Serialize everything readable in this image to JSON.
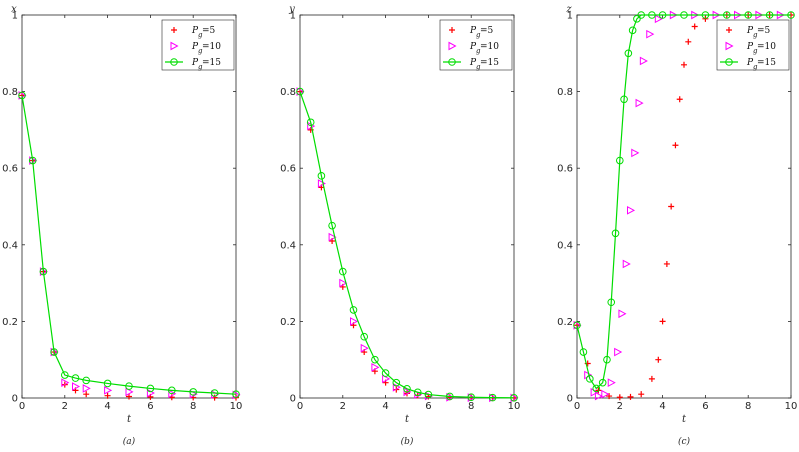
{
  "chart_data": [
    {
      "type": "scatter",
      "panel": "(a)",
      "ylabel": "x",
      "xlabel": "t",
      "xlim": [
        0,
        10
      ],
      "ylim": [
        0,
        1
      ],
      "xticks": [
        "0",
        "2",
        "4",
        "6",
        "8",
        "10"
      ],
      "yticks": [
        "0",
        "0.2",
        "0.4",
        "0.6",
        "0.8",
        "1"
      ],
      "legend_position": "top-right",
      "grid": false,
      "series": [
        {
          "name": "P_g=5",
          "legend_main": "P",
          "legend_sub": "g",
          "legend_tail": "=5",
          "marker": "plus",
          "color": "#ff0000",
          "x": [
            0,
            0.5,
            1,
            1.5,
            2,
            2.5,
            3,
            4,
            5,
            6,
            7,
            8,
            9,
            10
          ],
          "y": [
            0.79,
            0.62,
            0.33,
            0.12,
            0.035,
            0.02,
            0.01,
            0.006,
            0.004,
            0.003,
            0.002,
            0.0015,
            0.001,
            0.001
          ]
        },
        {
          "name": "P_g=10",
          "legend_main": "P",
          "legend_sub": "g",
          "legend_tail": "=10",
          "marker": "triangle-right",
          "color": "#ff00ff",
          "x": [
            0,
            0.5,
            1,
            1.5,
            2,
            2.5,
            3,
            4,
            5,
            6,
            7,
            8,
            9,
            10
          ],
          "y": [
            0.79,
            0.62,
            0.33,
            0.12,
            0.04,
            0.03,
            0.025,
            0.02,
            0.016,
            0.013,
            0.011,
            0.01,
            0.009,
            0.008
          ]
        },
        {
          "name": "P_g=15",
          "legend_main": "P",
          "legend_sub": "g",
          "legend_tail": "=15",
          "marker": "circle-line",
          "color": "#00dd00",
          "x": [
            0,
            0.5,
            1,
            1.5,
            2,
            2.5,
            3,
            4,
            5,
            6,
            7,
            8,
            9,
            10
          ],
          "y": [
            0.79,
            0.62,
            0.33,
            0.12,
            0.06,
            0.052,
            0.046,
            0.038,
            0.031,
            0.025,
            0.02,
            0.016,
            0.013,
            0.01
          ]
        }
      ]
    },
    {
      "type": "scatter",
      "panel": "(b)",
      "ylabel": "y",
      "xlabel": "t",
      "xlim": [
        0,
        10
      ],
      "ylim": [
        0,
        1
      ],
      "xticks": [
        "0",
        "2",
        "4",
        "6",
        "8",
        "10"
      ],
      "yticks": [
        "0",
        "0.2",
        "0.4",
        "0.6",
        "0.8",
        "1"
      ],
      "legend_position": "top-right",
      "grid": false,
      "series": [
        {
          "name": "P_g=5",
          "legend_main": "P",
          "legend_sub": "g",
          "legend_tail": "=5",
          "marker": "plus",
          "color": "#ff0000",
          "x": [
            0,
            0.5,
            1,
            1.5,
            2,
            2.5,
            3,
            3.5,
            4,
            4.5,
            5,
            5.5,
            6,
            7,
            8,
            9,
            10
          ],
          "y": [
            0.8,
            0.7,
            0.55,
            0.41,
            0.29,
            0.19,
            0.12,
            0.07,
            0.04,
            0.022,
            0.012,
            0.007,
            0.004,
            0.002,
            0.001,
            0.0005,
            0.0003
          ]
        },
        {
          "name": "P_g=10",
          "legend_main": "P",
          "legend_sub": "g",
          "legend_tail": "=10",
          "marker": "triangle-right",
          "color": "#ff00ff",
          "x": [
            0,
            0.5,
            1,
            1.5,
            2,
            2.5,
            3,
            3.5,
            4,
            4.5,
            5,
            5.5,
            6,
            7,
            8,
            9,
            10
          ],
          "y": [
            0.8,
            0.71,
            0.56,
            0.42,
            0.3,
            0.2,
            0.13,
            0.08,
            0.05,
            0.028,
            0.016,
            0.009,
            0.005,
            0.002,
            0.001,
            0.0005,
            0.0003
          ]
        },
        {
          "name": "P_g=15",
          "legend_main": "P",
          "legend_sub": "g",
          "legend_tail": "=15",
          "marker": "circle-line",
          "color": "#00dd00",
          "x": [
            0,
            0.5,
            1,
            1.5,
            2,
            2.5,
            3,
            3.5,
            4,
            4.5,
            5,
            5.5,
            6,
            7,
            8,
            9,
            10
          ],
          "y": [
            0.8,
            0.72,
            0.58,
            0.45,
            0.33,
            0.23,
            0.16,
            0.1,
            0.065,
            0.04,
            0.024,
            0.015,
            0.009,
            0.004,
            0.002,
            0.001,
            0.0005
          ]
        }
      ]
    },
    {
      "type": "scatter",
      "panel": "(c)",
      "ylabel": "z",
      "xlabel": "t",
      "xlim": [
        0,
        10
      ],
      "ylim": [
        0,
        1
      ],
      "xticks": [
        "0",
        "2",
        "4",
        "6",
        "8",
        "10"
      ],
      "yticks": [
        "0",
        "0.2",
        "0.4",
        "0.6",
        "0.8",
        "1"
      ],
      "legend_position": "top-right",
      "grid": false,
      "series": [
        {
          "name": "P_g=5",
          "legend_main": "P",
          "legend_sub": "g",
          "legend_tail": "=5",
          "marker": "plus",
          "color": "#ff0000",
          "x": [
            0,
            0.5,
            1,
            1.5,
            2,
            2.5,
            3,
            3.5,
            3.8,
            4,
            4.2,
            4.4,
            4.6,
            4.8,
            5,
            5.2,
            5.5,
            6,
            7,
            8,
            9,
            10
          ],
          "y": [
            0.19,
            0.09,
            0.02,
            0.005,
            0.002,
            0.003,
            0.01,
            0.05,
            0.1,
            0.2,
            0.35,
            0.5,
            0.66,
            0.78,
            0.87,
            0.93,
            0.97,
            0.99,
            1.0,
            1.0,
            1.0,
            1.0
          ]
        },
        {
          "name": "P_g=10",
          "legend_main": "P",
          "legend_sub": "g",
          "legend_tail": "=10",
          "marker": "triangle-right",
          "color": "#ff00ff",
          "x": [
            0,
            0.5,
            0.8,
            1,
            1.3,
            1.6,
            1.9,
            2.1,
            2.3,
            2.5,
            2.7,
            2.9,
            3.1,
            3.4,
            3.8,
            4.5,
            5.5,
            6.5,
            7.5,
            8.5,
            9.5
          ],
          "y": [
            0.19,
            0.06,
            0.015,
            0.005,
            0.01,
            0.04,
            0.12,
            0.22,
            0.35,
            0.49,
            0.64,
            0.77,
            0.88,
            0.95,
            0.99,
            1.0,
            1.0,
            1.0,
            1.0,
            1.0,
            1.0
          ]
        },
        {
          "name": "P_g=15",
          "legend_main": "P",
          "legend_sub": "g",
          "legend_tail": "=15",
          "marker": "circle-line",
          "color": "#00dd00",
          "x": [
            0,
            0.3,
            0.6,
            0.9,
            1.2,
            1.4,
            1.6,
            1.8,
            2,
            2.2,
            2.4,
            2.6,
            2.8,
            3,
            3.5,
            4,
            5,
            6,
            7,
            8,
            9,
            10
          ],
          "y": [
            0.19,
            0.12,
            0.05,
            0.025,
            0.04,
            0.1,
            0.25,
            0.43,
            0.62,
            0.78,
            0.9,
            0.96,
            0.99,
            1.0,
            1.0,
            1.0,
            1.0,
            1.0,
            1.0,
            1.0,
            1.0,
            1.0
          ]
        }
      ]
    }
  ]
}
